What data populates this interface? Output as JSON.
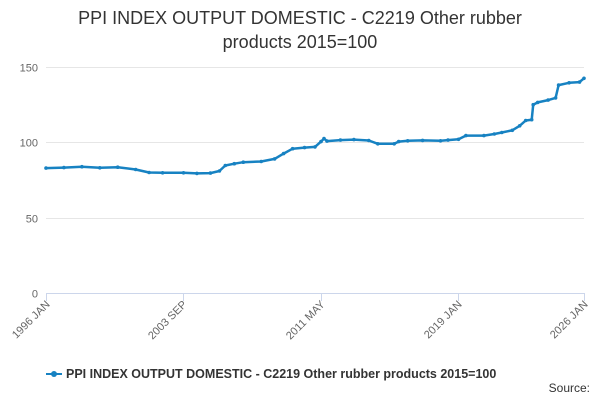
{
  "title_lines": [
    "PPI INDEX OUTPUT DOMESTIC - C2219 Other rubber",
    "products 2015=100"
  ],
  "legend_label": "PPI INDEX OUTPUT DOMESTIC - C2219 Other rubber products 2015=100",
  "source_label": "Source:",
  "colors": {
    "series": "#1782c2",
    "grid": "#e6e6e6",
    "axis": "#ccd6eb",
    "text": "#333333",
    "tick_text": "#666666"
  },
  "chart_data": {
    "type": "line",
    "title": "PPI INDEX OUTPUT DOMESTIC - C2219 Other rubber products 2015=100",
    "xlabel": "",
    "ylabel": "",
    "ylim": [
      0,
      150
    ],
    "yticks": [
      0,
      50,
      100,
      150
    ],
    "xlim": [
      "1996-01",
      "2026-01"
    ],
    "xticks": [
      "1996 JAN",
      "2003 SEP",
      "2011 MAY",
      "2019 JAN",
      "2026 JAN"
    ],
    "grid": true,
    "legend": "bottom",
    "series": [
      {
        "name": "PPI INDEX OUTPUT DOMESTIC - C2219 Other rubber products 2015=100",
        "points": [
          [
            "1996-01",
            82.9
          ],
          [
            "1997-01",
            83.2
          ],
          [
            "1998-01",
            83.8
          ],
          [
            "1999-01",
            83.1
          ],
          [
            "2000-01",
            83.5
          ],
          [
            "2001-01",
            82.0
          ],
          [
            "2001-10",
            80.0
          ],
          [
            "2002-07",
            79.8
          ],
          [
            "2003-09",
            79.8
          ],
          [
            "2004-06",
            79.4
          ],
          [
            "2005-03",
            79.6
          ],
          [
            "2005-09",
            81.0
          ],
          [
            "2006-01",
            84.6
          ],
          [
            "2006-07",
            85.8
          ],
          [
            "2007-01",
            86.8
          ],
          [
            "2008-01",
            87.3
          ],
          [
            "2008-10",
            89.0
          ],
          [
            "2009-04",
            92.5
          ],
          [
            "2009-10",
            95.8
          ],
          [
            "2010-06",
            96.5
          ],
          [
            "2011-01",
            97.0
          ],
          [
            "2011-05",
            100.5
          ],
          [
            "2011-07",
            102.5
          ],
          [
            "2011-09",
            100.8
          ],
          [
            "2012-06",
            101.5
          ],
          [
            "2013-03",
            101.8
          ],
          [
            "2014-01",
            101.2
          ],
          [
            "2014-07",
            99.0
          ],
          [
            "2015-06",
            99.0
          ],
          [
            "2015-09",
            100.5
          ],
          [
            "2016-03",
            101.0
          ],
          [
            "2017-01",
            101.3
          ],
          [
            "2018-01",
            101.0
          ],
          [
            "2018-06",
            101.5
          ],
          [
            "2019-01",
            102.0
          ],
          [
            "2019-06",
            104.5
          ],
          [
            "2020-06",
            104.5
          ],
          [
            "2021-01",
            105.5
          ],
          [
            "2021-06",
            106.5
          ],
          [
            "2022-01",
            108.0
          ],
          [
            "2022-06",
            111.0
          ],
          [
            "2022-10",
            114.5
          ],
          [
            "2023-02",
            115.0
          ],
          [
            "2023-03",
            125.0
          ],
          [
            "2023-06",
            126.5
          ],
          [
            "2024-01",
            128.0
          ],
          [
            "2024-06",
            129.5
          ],
          [
            "2024-08",
            138.0
          ],
          [
            "2025-03",
            139.5
          ],
          [
            "2025-10",
            140.0
          ],
          [
            "2026-01",
            142.5
          ]
        ]
      }
    ]
  }
}
